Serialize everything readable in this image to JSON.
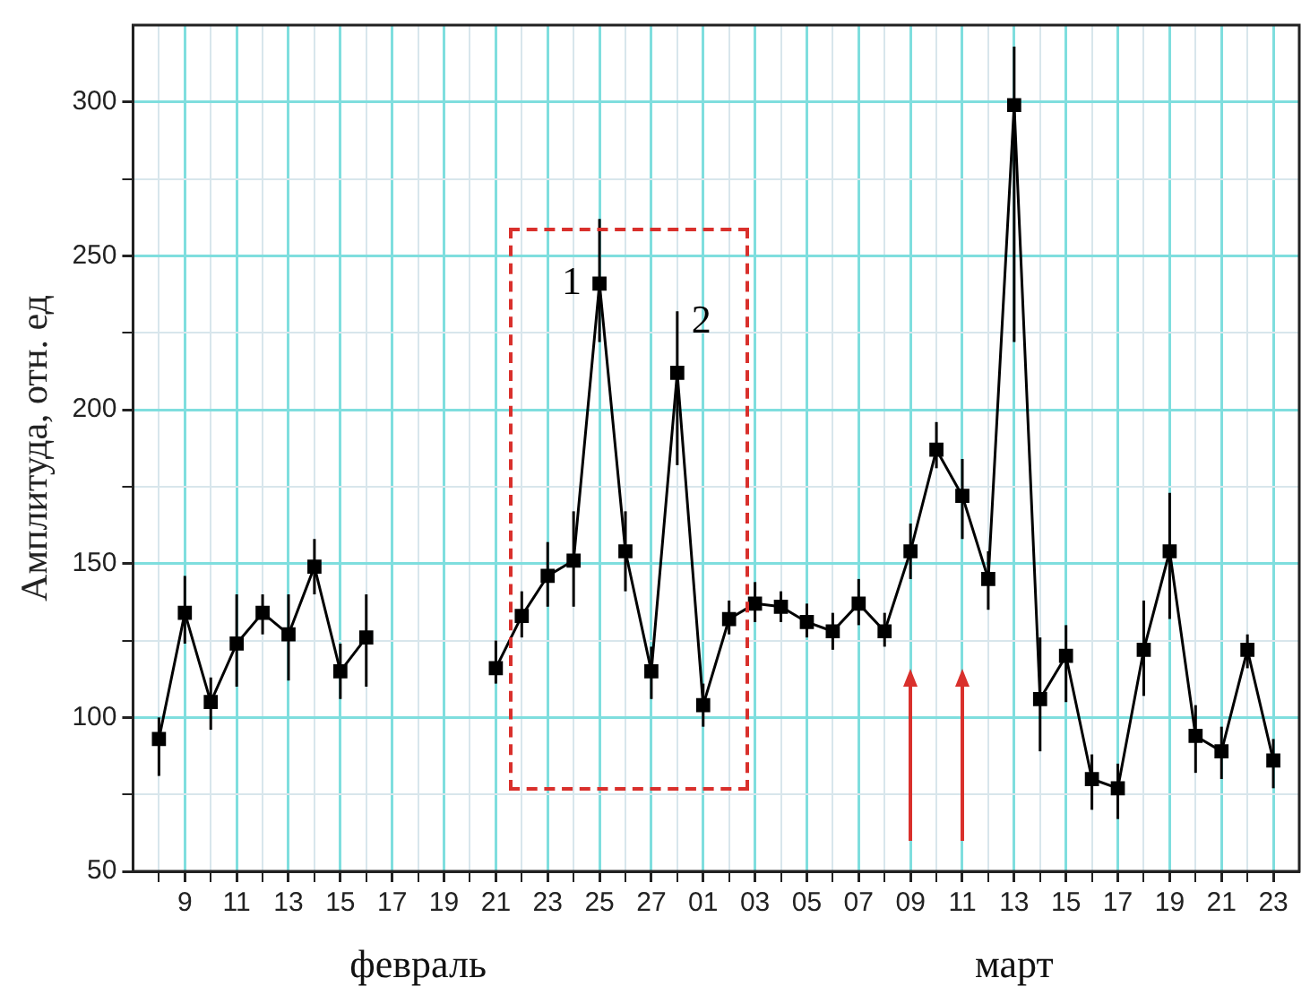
{
  "chart_data": {
    "type": "line",
    "ylabel": "Амплитуда, отн. ед",
    "x": [
      "--02-08",
      "--02-09",
      "--02-10",
      "--02-11",
      "--02-12",
      "--02-13",
      "--02-14",
      "--02-15",
      "--02-16",
      "--02-17",
      "--02-18",
      "--02-19",
      "--02-20",
      "--02-21",
      "--02-22",
      "--02-23",
      "--02-24",
      "--02-25",
      "--02-26",
      "--02-27",
      "--02-28",
      "--03-01",
      "--03-02",
      "--03-03",
      "--03-04",
      "--03-05",
      "--03-06",
      "--03-07",
      "--03-08",
      "--03-09",
      "--03-10",
      "--03-11",
      "--03-12",
      "--03-13",
      "--03-14",
      "--03-15",
      "--03-16",
      "--03-17",
      "--03-18",
      "--03-19",
      "--03-20",
      "--03-21",
      "--03-22",
      "--03-23"
    ],
    "series": [
      {
        "color": "#000000",
        "values": [
          93,
          134,
          105,
          124,
          134,
          127,
          149,
          115,
          126,
          null,
          null,
          null,
          null,
          116,
          133,
          146,
          151,
          241,
          154,
          115,
          212,
          104,
          132,
          137,
          136,
          131,
          128,
          137,
          128,
          154,
          187,
          172,
          145,
          299,
          106,
          120,
          80,
          77,
          122,
          154,
          94,
          89,
          122,
          86
        ],
        "errors": [
          [
            81,
            100
          ],
          [
            124,
            146
          ],
          [
            96,
            113
          ],
          [
            110,
            140
          ],
          [
            127,
            140
          ],
          [
            112,
            140
          ],
          [
            140,
            158
          ],
          [
            106,
            124
          ],
          [
            110,
            140
          ],
          null,
          null,
          null,
          null,
          [
            111,
            125
          ],
          [
            126,
            141
          ],
          [
            136,
            157
          ],
          [
            136,
            167
          ],
          [
            222,
            262
          ],
          [
            141,
            167
          ],
          [
            106,
            123
          ],
          [
            182,
            232
          ],
          [
            97,
            111
          ],
          [
            127,
            138
          ],
          [
            131,
            144
          ],
          [
            131,
            141
          ],
          [
            126,
            137
          ],
          [
            122,
            134
          ],
          [
            130,
            145
          ],
          [
            123,
            134
          ],
          [
            145,
            163
          ],
          [
            181,
            196
          ],
          [
            158,
            184
          ],
          [
            135,
            154
          ],
          [
            222,
            318
          ],
          [
            89,
            126
          ],
          [
            105,
            130
          ],
          [
            70,
            88
          ],
          [
            67,
            85
          ],
          [
            107,
            138
          ],
          [
            132,
            173
          ],
          [
            82,
            104
          ],
          [
            80,
            97
          ],
          [
            116,
            127
          ],
          [
            77,
            93
          ]
        ]
      }
    ],
    "xlim": [
      "--02-07",
      "--03-24"
    ],
    "xticks": [
      {
        "value": "--02-08",
        "label": null
      },
      {
        "value": "--02-09",
        "label": "9"
      },
      {
        "value": "--02-10",
        "label": null
      },
      {
        "value": "--02-11",
        "label": "11"
      },
      {
        "value": "--02-12",
        "label": null
      },
      {
        "value": "--02-13",
        "label": "13"
      },
      {
        "value": "--02-14",
        "label": null
      },
      {
        "value": "--02-15",
        "label": "15"
      },
      {
        "value": "--02-16",
        "label": null
      },
      {
        "value": "--02-17",
        "label": "17"
      },
      {
        "value": "--02-18",
        "label": null
      },
      {
        "value": "--02-19",
        "label": "19"
      },
      {
        "value": "--02-20",
        "label": null
      },
      {
        "value": "--02-21",
        "label": "21"
      },
      {
        "value": "--02-22",
        "label": null
      },
      {
        "value": "--02-23",
        "label": "23"
      },
      {
        "value": "--02-24",
        "label": null
      },
      {
        "value": "--02-25",
        "label": "25"
      },
      {
        "value": "--02-26",
        "label": null
      },
      {
        "value": "--02-27",
        "label": "27"
      },
      {
        "value": "--02-28",
        "label": null
      },
      {
        "value": "--03-01",
        "label": "01"
      },
      {
        "value": "--03-02",
        "label": null
      },
      {
        "value": "--03-03",
        "label": "03"
      },
      {
        "value": "--03-04",
        "label": null
      },
      {
        "value": "--03-05",
        "label": "05"
      },
      {
        "value": "--03-06",
        "label": null
      },
      {
        "value": "--03-07",
        "label": "07"
      },
      {
        "value": "--03-08",
        "label": null
      },
      {
        "value": "--03-09",
        "label": "09"
      },
      {
        "value": "--03-10",
        "label": null
      },
      {
        "value": "--03-11",
        "label": "11"
      },
      {
        "value": "--03-12",
        "label": null
      },
      {
        "value": "--03-13",
        "label": "13"
      },
      {
        "value": "--03-14",
        "label": null
      },
      {
        "value": "--03-15",
        "label": "15"
      },
      {
        "value": "--03-16",
        "label": null
      },
      {
        "value": "--03-17",
        "label": "17"
      },
      {
        "value": "--03-18",
        "label": null
      },
      {
        "value": "--03-19",
        "label": "19"
      },
      {
        "value": "--03-20",
        "label": null
      },
      {
        "value": "--03-21",
        "label": "21"
      },
      {
        "value": "--03-22",
        "label": null
      },
      {
        "value": "--03-23",
        "label": "23"
      }
    ],
    "ylim": [
      50,
      325
    ],
    "yticks": [
      50,
      {
        "value": 75,
        "label": null
      },
      100,
      {
        "value": 125,
        "label": null
      },
      150,
      {
        "value": 175,
        "label": null
      },
      200,
      {
        "value": 225,
        "label": null
      },
      250,
      {
        "value": 275,
        "label": null
      },
      300
    ],
    "grid": true,
    "marker": "square",
    "line_style": "solid",
    "legend": false,
    "annotations": [
      {
        "text": "1",
        "x": "--02-25",
        "y": 241
      },
      {
        "text": "2",
        "x": "--02-28",
        "y": 212
      },
      "февраль",
      "март"
    ]
  }
}
